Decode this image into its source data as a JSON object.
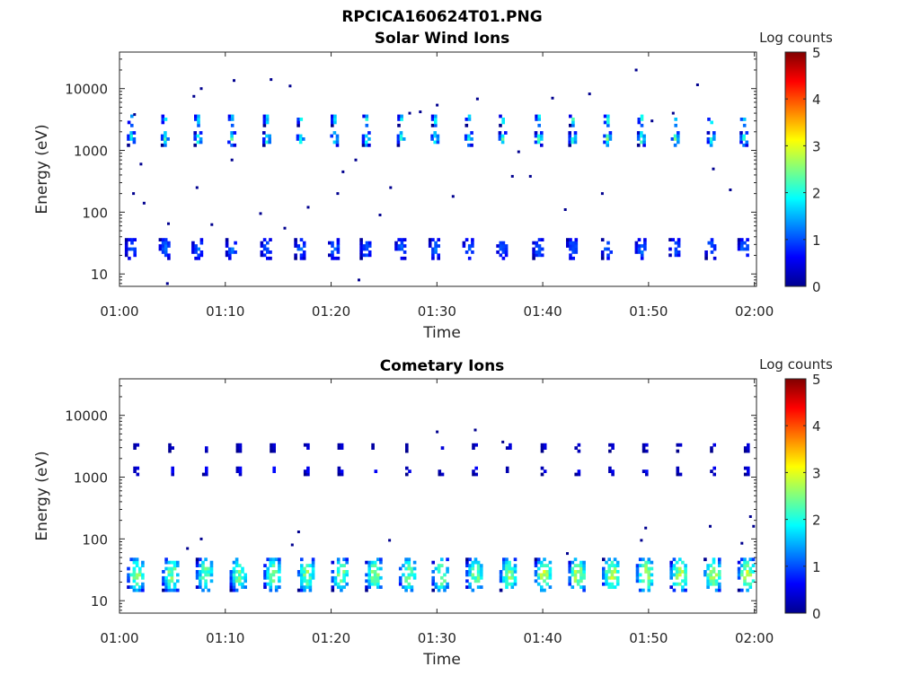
{
  "figure_title": "RPCICA160624T01.PNG",
  "chart_data": [
    {
      "type": "heatmap",
      "title": "Solar Wind Ions",
      "xlabel": "Time",
      "ylabel": "Energy (eV)",
      "xticks": [
        "01:00",
        "01:10",
        "01:20",
        "01:30",
        "01:40",
        "01:50",
        "02:00"
      ],
      "xlim_minutes_after_01_00": [
        0,
        60.2
      ],
      "yscale": "log",
      "ylim": [
        6.3,
        39000
      ],
      "yticks": [
        "10",
        "100",
        "1000",
        "10000"
      ],
      "colorbar": {
        "label": "Log counts",
        "range": [
          0,
          5
        ],
        "ticks": [
          "0",
          "1",
          "2",
          "3",
          "4",
          "5"
        ],
        "colormap": "jet"
      },
      "burst_times_min": [
        1.0,
        4.2,
        7.3,
        10.5,
        13.8,
        17.0,
        20.2,
        23.2,
        26.5,
        29.7,
        32.9,
        36.1,
        39.5,
        42.7,
        46.0,
        49.2,
        52.4,
        55.8,
        58.9
      ],
      "bands": [
        {
          "energy_range_eV": [
            2400,
            3700
          ],
          "peak_log_counts": 1.9,
          "duration_min": 0.5
        },
        {
          "energy_range_eV": [
            1150,
            1900
          ],
          "peak_log_counts": 2.2,
          "duration_min": 0.6
        },
        {
          "energy_range_eV": [
            17,
            36
          ],
          "peak_log_counts": 1.2,
          "duration_min": 1.0
        }
      ],
      "isolated_counts": [
        [
          1.3,
          3800
        ],
        [
          1.2,
          200
        ],
        [
          1.9,
          600
        ],
        [
          2.2,
          140
        ],
        [
          6.9,
          7500
        ],
        [
          7.6,
          10000
        ],
        [
          7.2,
          250
        ],
        [
          8.6,
          63
        ],
        [
          10.7,
          13500
        ],
        [
          10.5,
          700
        ],
        [
          13.2,
          95
        ],
        [
          14.2,
          14000
        ],
        [
          15.5,
          55
        ],
        [
          16,
          11000
        ],
        [
          17.7,
          120
        ],
        [
          20.5,
          200
        ],
        [
          21,
          450
        ],
        [
          22.2,
          700
        ],
        [
          24.5,
          90
        ],
        [
          25.5,
          250
        ],
        [
          27.3,
          4000
        ],
        [
          28.3,
          4200
        ],
        [
          29.9,
          5400
        ],
        [
          31.4,
          180
        ],
        [
          33.7,
          6800
        ],
        [
          37.6,
          950
        ],
        [
          38.7,
          380
        ],
        [
          40.8,
          7000
        ],
        [
          42,
          110
        ],
        [
          44.3,
          8200
        ],
        [
          45.5,
          200
        ],
        [
          48.7,
          20000
        ],
        [
          50.2,
          3000
        ],
        [
          54.5,
          11500
        ],
        [
          52.2,
          4000
        ],
        [
          57.6,
          230
        ],
        [
          56,
          500
        ],
        [
          4.5,
          65
        ],
        [
          22.5,
          8
        ],
        [
          4.4,
          7
        ],
        [
          37,
          380
        ]
      ]
    },
    {
      "type": "heatmap",
      "title": "Cometary Ions",
      "xlabel": "Time",
      "ylabel": "Energy (eV)",
      "xticks": [
        "01:00",
        "01:10",
        "01:20",
        "01:30",
        "01:40",
        "01:50",
        "02:00"
      ],
      "xlim_minutes_after_01_00": [
        0,
        60.2
      ],
      "yscale": "log",
      "ylim": [
        6.3,
        39000
      ],
      "yticks": [
        "10",
        "100",
        "1000",
        "10000"
      ],
      "colorbar": {
        "label": "Log counts",
        "range": [
          0,
          5
        ],
        "ticks": [
          "0",
          "1",
          "2",
          "3",
          "4",
          "5"
        ],
        "colormap": "jet"
      },
      "burst_times_min": [
        1.5,
        4.8,
        8.0,
        11.2,
        14.4,
        17.6,
        20.8,
        24.0,
        27.2,
        30.3,
        33.5,
        36.7,
        40.0,
        43.2,
        46.4,
        49.6,
        52.8,
        56.0,
        59.2
      ],
      "bands": [
        {
          "energy_range_eV": [
            14,
            45
          ],
          "peak_log_counts": 2.6,
          "duration_min": 1.6
        },
        {
          "energy_range_eV": [
            2500,
            3500
          ],
          "peak_log_counts": 0.5,
          "duration_min": 0.4
        },
        {
          "energy_range_eV": [
            1050,
            1450
          ],
          "peak_log_counts": 0.7,
          "duration_min": 0.4
        }
      ],
      "isolated_counts": [
        [
          6.3,
          70
        ],
        [
          7.6,
          100
        ],
        [
          16.8,
          130
        ],
        [
          16.2,
          80
        ],
        [
          25.4,
          95
        ],
        [
          29.9,
          5400
        ],
        [
          33.5,
          5800
        ],
        [
          36.1,
          3700
        ],
        [
          42.2,
          58
        ],
        [
          49.2,
          95
        ],
        [
          49.6,
          150
        ],
        [
          55.7,
          160
        ],
        [
          58.7,
          85
        ],
        [
          59.5,
          230
        ],
        [
          59.8,
          160
        ]
      ]
    }
  ]
}
